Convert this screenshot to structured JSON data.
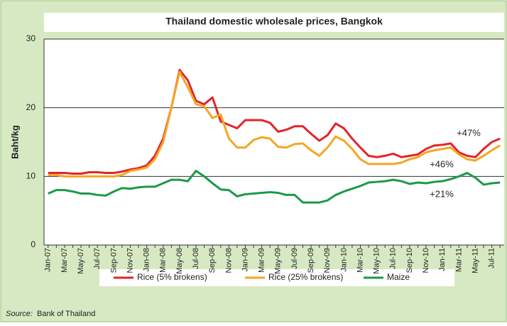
{
  "chart_data": {
    "type": "line",
    "title": "Thailand domestic wholesale prices, Bangkok",
    "y_label": "Baht/kg",
    "categories": [
      "Jan-07",
      null,
      "Mar-07",
      null,
      "May-07",
      null,
      "Jul-07",
      null,
      "Sep-07",
      null,
      "Nov-07",
      null,
      "Jan-08",
      null,
      "Mar-08",
      null,
      "May-08",
      null,
      "Jul-08",
      null,
      "Sep-08",
      null,
      "Nov-08",
      null,
      "Jan-09",
      null,
      "Mar-09",
      null,
      "May-09",
      null,
      "Jul-09",
      null,
      "Sep-09",
      null,
      "Nov-09",
      null,
      "Jan-10",
      null,
      "Mar-10",
      null,
      "May-10",
      null,
      "Jul-10",
      null,
      "Sep-10",
      null,
      "Nov-10",
      null,
      "Jan-11",
      null,
      "Mar-11",
      null,
      "May-11",
      null,
      "Jul-11",
      null
    ],
    "series": [
      {
        "name": "Rice (5% brokens)",
        "color": "#e3242b",
        "values": [
          10.5,
          10.5,
          10.5,
          10.4,
          10.4,
          10.6,
          10.6,
          10.5,
          10.5,
          10.7,
          11.0,
          11.2,
          11.6,
          13,
          15.5,
          20,
          25.5,
          24,
          21,
          20.5,
          21.5,
          18,
          17.5,
          17,
          18.2,
          18.2,
          18.2,
          17.8,
          16.5,
          16.8,
          17.3,
          17.3,
          16.2,
          15.2,
          16,
          17.7,
          17,
          15.5,
          14.2,
          13,
          12.8,
          13,
          13.3,
          12.8,
          13,
          13.2,
          14,
          14.5,
          14.6,
          14.8,
          13.5,
          13,
          12.8,
          14,
          15,
          15.5
        ]
      },
      {
        "name": "Rice (25% brokens)",
        "color": "#f5a623",
        "values": [
          10.2,
          10.2,
          10,
          10,
          10,
          10,
          10,
          10,
          10,
          10.2,
          10.8,
          11,
          11.3,
          12.5,
          15,
          20,
          25.2,
          23,
          20.5,
          20.2,
          18.5,
          19,
          15.5,
          14.2,
          14.2,
          15.3,
          15.7,
          15.5,
          14.3,
          14.2,
          14.7,
          14.8,
          13.8,
          13,
          14.2,
          15.8,
          15.2,
          14,
          12.5,
          11.8,
          11.8,
          11.8,
          11.8,
          12,
          12.5,
          12.8,
          13.5,
          13.8,
          14,
          14.2,
          13.2,
          12.5,
          12.3,
          13,
          13.8,
          14.5
        ]
      },
      {
        "name": "Maize",
        "color": "#1a9a4a",
        "values": [
          7.5,
          8,
          8,
          7.8,
          7.5,
          7.5,
          7.3,
          7.2,
          7.8,
          8.3,
          8.2,
          8.4,
          8.5,
          8.5,
          9,
          9.5,
          9.5,
          9.3,
          10.8,
          10,
          9,
          8.1,
          8,
          7.1,
          7.4,
          7.5,
          7.6,
          7.7,
          7.6,
          7.3,
          7.3,
          6.2,
          6.2,
          6.2,
          6.5,
          7.3,
          7.8,
          8.2,
          8.6,
          9.1,
          9.2,
          9.3,
          9.5,
          9.3,
          8.9,
          9.1,
          9,
          9.2,
          9.3,
          9.6,
          10,
          10.5,
          9.8,
          8.8,
          9,
          9.1
        ]
      }
    ],
    "annotations": [
      "+47%",
      "+46%",
      "+21%"
    ],
    "ylim": [
      0,
      30
    ],
    "yticks": [
      0,
      10,
      20,
      30
    ],
    "grid": true,
    "legend": "bottom",
    "source": {
      "label": "Source:",
      "text": "Bank of Thailand"
    }
  }
}
